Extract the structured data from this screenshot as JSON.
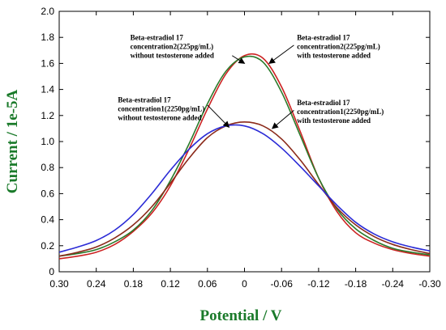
{
  "chart_data": {
    "type": "line",
    "xlabel": "Potential / V",
    "ylabel": "Current / 1e-5A",
    "xlim": [
      0.3,
      -0.3
    ],
    "ylim": [
      0,
      2.0
    ],
    "x_reversed": true,
    "grid": false,
    "x_ticks": [
      "0.30",
      "0.24",
      "0.18",
      "0.12",
      "0.06",
      "0",
      "-0.06",
      "-0.12",
      "-0.18",
      "-0.24",
      "-0.30"
    ],
    "y_ticks": [
      "0",
      "0.2",
      "0.4",
      "0.6",
      "0.8",
      "1.0",
      "1.2",
      "1.4",
      "1.6",
      "1.8",
      "2.0"
    ],
    "x_tick_values": [
      0.3,
      0.24,
      0.18,
      0.12,
      0.06,
      0,
      -0.06,
      -0.12,
      -0.18,
      -0.24,
      -0.3
    ],
    "y_tick_values": [
      0,
      0.2,
      0.4,
      0.6,
      0.8,
      1.0,
      1.2,
      1.4,
      1.6,
      1.8,
      2.0
    ],
    "series": [
      {
        "color": "#cc2222",
        "x": [
          0.3,
          0.27,
          0.24,
          0.21,
          0.18,
          0.15,
          0.12,
          0.09,
          0.06,
          0.03,
          0.0,
          -0.03,
          -0.06,
          -0.09,
          -0.12,
          -0.15,
          -0.18,
          -0.21,
          -0.24,
          -0.27,
          -0.3
        ],
        "y": [
          0.1,
          0.12,
          0.15,
          0.21,
          0.31,
          0.45,
          0.66,
          0.94,
          1.25,
          1.52,
          1.66,
          1.64,
          1.42,
          1.08,
          0.72,
          0.46,
          0.3,
          0.22,
          0.17,
          0.14,
          0.12
        ]
      },
      {
        "color": "#2a7a2a",
        "x": [
          0.3,
          0.27,
          0.24,
          0.21,
          0.18,
          0.15,
          0.12,
          0.09,
          0.06,
          0.03,
          0.0,
          -0.03,
          -0.06,
          -0.09,
          -0.12,
          -0.15,
          -0.18,
          -0.21,
          -0.24,
          -0.27,
          -0.3
        ],
        "y": [
          0.12,
          0.14,
          0.17,
          0.23,
          0.32,
          0.47,
          0.7,
          0.98,
          1.29,
          1.54,
          1.65,
          1.61,
          1.38,
          1.05,
          0.72,
          0.48,
          0.33,
          0.24,
          0.18,
          0.15,
          0.13
        ]
      },
      {
        "color": "#8b2a1a",
        "x": [
          0.3,
          0.27,
          0.24,
          0.21,
          0.18,
          0.15,
          0.12,
          0.09,
          0.06,
          0.03,
          0.0,
          -0.03,
          -0.06,
          -0.09,
          -0.12,
          -0.15,
          -0.18,
          -0.21,
          -0.24,
          -0.27,
          -0.3
        ],
        "y": [
          0.12,
          0.15,
          0.19,
          0.26,
          0.36,
          0.5,
          0.68,
          0.87,
          1.03,
          1.12,
          1.15,
          1.12,
          1.02,
          0.86,
          0.67,
          0.49,
          0.36,
          0.27,
          0.21,
          0.17,
          0.14
        ]
      },
      {
        "color": "#2b2bd6",
        "x": [
          0.3,
          0.27,
          0.24,
          0.21,
          0.18,
          0.15,
          0.12,
          0.09,
          0.06,
          0.03,
          0.0,
          -0.03,
          -0.06,
          -0.09,
          -0.12,
          -0.15,
          -0.18,
          -0.21,
          -0.24,
          -0.27,
          -0.3
        ],
        "y": [
          0.15,
          0.19,
          0.24,
          0.32,
          0.44,
          0.6,
          0.78,
          0.94,
          1.06,
          1.12,
          1.12,
          1.06,
          0.95,
          0.81,
          0.66,
          0.51,
          0.38,
          0.29,
          0.23,
          0.19,
          0.16
        ]
      }
    ],
    "annotations": [
      {
        "lines": [
          "Beta-estradiol 17",
          "concentration2(225pg/mL)",
          "without testosterone added"
        ],
        "text_at": [
          0.185,
          1.78
        ],
        "arrow_from": [
          0.02,
          1.66
        ],
        "arrow_to": [
          0.0,
          1.6
        ]
      },
      {
        "lines": [
          "Beta-estradiol 17",
          "concentration2(225pg/mL)",
          "with testosterone added"
        ],
        "text_at": [
          -0.085,
          1.78
        ],
        "arrow_from": [
          -0.08,
          1.74
        ],
        "arrow_to": [
          -0.04,
          1.6
        ]
      },
      {
        "lines": [
          "Beta-estradiol 17",
          "concentration1(2250pg/mL)",
          "without testosterone added"
        ],
        "text_at": [
          0.205,
          1.3
        ],
        "arrow_from": [
          0.06,
          1.28
        ],
        "arrow_to": [
          0.025,
          1.11
        ]
      },
      {
        "lines": [
          "Beta-estradiol 17",
          "concentration1(2250pg/mL)",
          "with testosterone added"
        ],
        "text_at": [
          -0.085,
          1.28
        ],
        "arrow_from": [
          -0.08,
          1.24
        ],
        "arrow_to": [
          -0.045,
          1.1
        ]
      }
    ]
  }
}
